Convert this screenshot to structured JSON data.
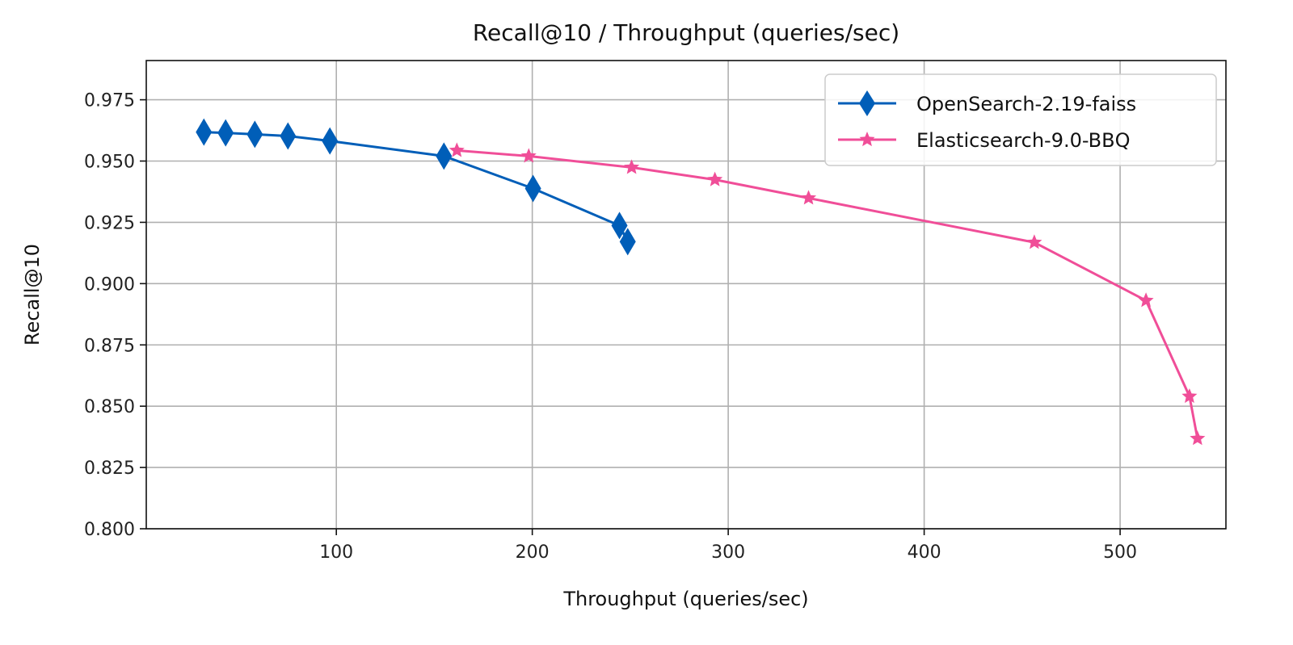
{
  "chart_data": {
    "type": "line",
    "title": "Recall@10 / Throughput (queries/sec)",
    "xlabel": "Throughput (queries/sec)",
    "ylabel": "Recall@10",
    "xlim": [
      3,
      554
    ],
    "ylim": [
      0.8,
      0.991
    ],
    "xticks": [
      100,
      200,
      300,
      400,
      500
    ],
    "xtick_labels": [
      "100",
      "200",
      "300",
      "400",
      "500"
    ],
    "yticks": [
      0.8,
      0.825,
      0.85,
      0.875,
      0.9,
      0.925,
      0.95,
      0.975
    ],
    "ytick_labels": [
      "0.800",
      "0.825",
      "0.850",
      "0.875",
      "0.900",
      "0.925",
      "0.950",
      "0.975"
    ],
    "grid": true,
    "legend_position": "top-right",
    "series": [
      {
        "name": "OpenSearch-2.19-faiss",
        "color": "#005EB8",
        "marker": "diamond",
        "x": [
          32.4,
          43.5,
          58.4,
          75.3,
          96.7,
          154.9,
          200.4,
          244.5,
          248.7
        ],
        "y": [
          0.9618,
          0.9615,
          0.9609,
          0.9602,
          0.9582,
          0.952,
          0.9388,
          0.9237,
          0.9171
        ]
      },
      {
        "name": "Elasticsearch-9.0-BBQ",
        "color": "#F04E98",
        "marker": "star",
        "x": [
          161.5,
          198.2,
          250.7,
          293.2,
          341.0,
          456.2,
          513.2,
          535.4,
          539.5
        ],
        "y": [
          0.9543,
          0.952,
          0.9474,
          0.9424,
          0.9349,
          0.9168,
          0.8931,
          0.854,
          0.8368
        ]
      }
    ]
  }
}
